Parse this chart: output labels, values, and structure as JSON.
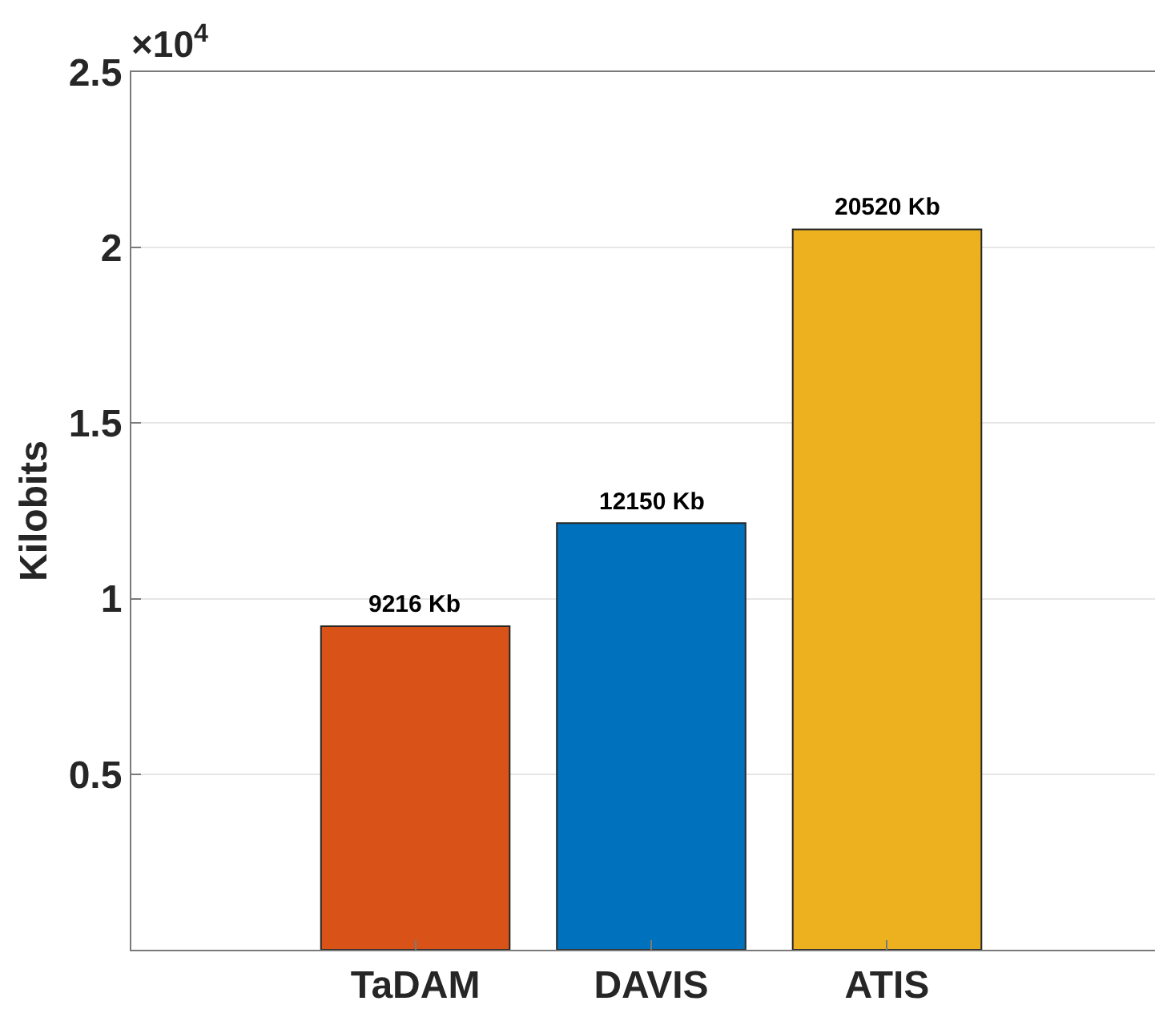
{
  "chart_data": {
    "type": "bar",
    "ylabel": "Kilobits",
    "categories": [
      "TaDAM",
      "DAVIS",
      "ATIS"
    ],
    "values": [
      0.9216,
      1.215,
      2.052
    ],
    "colors": [
      "#d95319",
      "#0072bd",
      "#edb120"
    ],
    "ylim": [
      0,
      2.5
    ],
    "yticks": [
      0.5,
      1,
      1.5,
      2,
      2.5
    ],
    "annotations": [
      "×10$^{4}$",
      {
        "text": "9216 Kb",
        "x": "TaDAM",
        "y": 0.9216
      },
      {
        "text": "12150 Kb",
        "x": "DAVIS",
        "y": 1.215
      },
      {
        "text": "20520 Kb",
        "x": "ATIS",
        "y": 2.052
      }
    ],
    "grid": "y"
  }
}
